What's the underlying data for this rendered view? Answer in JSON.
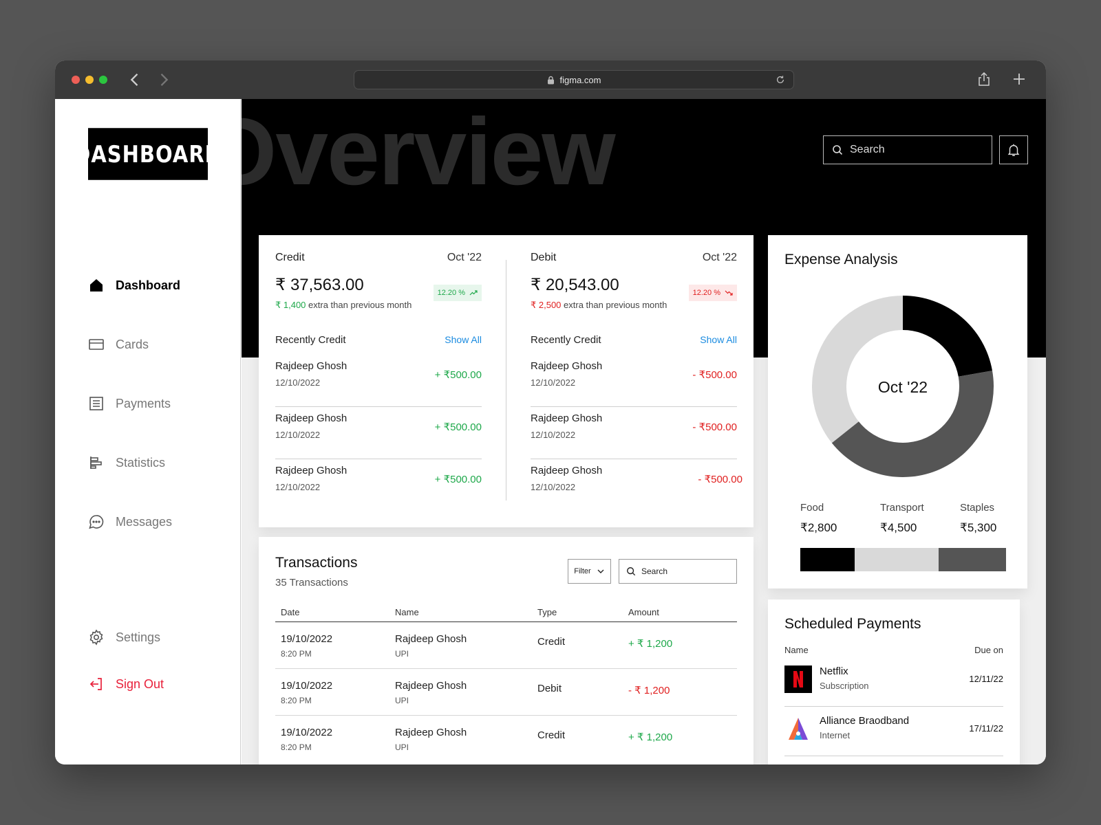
{
  "browser": {
    "url": "figma.com"
  },
  "sidebar": {
    "logo": "DASHBOARD",
    "items": [
      {
        "label": "Dashboard",
        "icon": "home-icon"
      },
      {
        "label": "Cards",
        "icon": "card-icon"
      },
      {
        "label": "Payments",
        "icon": "receipt-icon"
      },
      {
        "label": "Statistics",
        "icon": "statistics-icon"
      },
      {
        "label": "Messages",
        "icon": "message-icon"
      }
    ],
    "settings_label": "Settings",
    "signout_label": "Sign Out"
  },
  "header": {
    "title": "Overview",
    "search_placeholder": "Search"
  },
  "credit": {
    "label": "Credit",
    "month": "Oct '22",
    "amount": "₹ 37,563.00",
    "badge": "12.20 %",
    "note_value": "₹ 1,400",
    "note_text": " extra than previous month",
    "recent_label": "Recently Credit",
    "show_all": "Show All",
    "rows": [
      {
        "name": "Rajdeep Ghosh",
        "date": "12/10/2022",
        "amount": "+ ₹500.00"
      },
      {
        "name": "Rajdeep Ghosh",
        "date": "12/10/2022",
        "amount": "+ ₹500.00"
      },
      {
        "name": "Rajdeep Ghosh",
        "date": "12/10/2022",
        "amount": "+ ₹500.00"
      }
    ]
  },
  "debit": {
    "label": "Debit",
    "month": "Oct '22",
    "amount": "₹ 20,543.00",
    "badge": "12.20 %",
    "note_value": "₹ 2,500",
    "note_text": " extra than previous month",
    "recent_label": "Recently Credit",
    "show_all": "Show All",
    "rows": [
      {
        "name": "Rajdeep Ghosh",
        "date": "12/10/2022",
        "amount": "- ₹500.00"
      },
      {
        "name": "Rajdeep Ghosh",
        "date": "12/10/2022",
        "amount": "- ₹500.00"
      },
      {
        "name": "Rajdeep Ghosh",
        "date": "12/10/2022",
        "amount": "- ₹500.00"
      }
    ]
  },
  "transactions": {
    "title": "Transactions",
    "count": "35 Transactions",
    "filter_label": "Filter",
    "search_placeholder": "Search",
    "columns": [
      "Date",
      "Name",
      "Type",
      "Amount"
    ],
    "rows": [
      {
        "date": "19/10/2022",
        "time": "8:20 PM",
        "name": "Rajdeep Ghosh",
        "method": "UPI",
        "type": "Credit",
        "amount": "+ ₹ 1,200",
        "sign": "pos"
      },
      {
        "date": "19/10/2022",
        "time": "8:20 PM",
        "name": "Rajdeep Ghosh",
        "method": "UPI",
        "type": "Debit",
        "amount": "- ₹ 1,200",
        "sign": "neg"
      },
      {
        "date": "19/10/2022",
        "time": "8:20 PM",
        "name": "Rajdeep Ghosh",
        "method": "UPI",
        "type": "Credit",
        "amount": "+ ₹ 1,200",
        "sign": "pos"
      }
    ]
  },
  "expense": {
    "title": "Expense Analysis",
    "center_label": "Oct '22",
    "categories": [
      {
        "name": "Food",
        "value": "₹2,800",
        "amount": 2800,
        "color": "#000000"
      },
      {
        "name": "Transport",
        "value": "₹4,500",
        "amount": 4500,
        "color": "#d9d9d9"
      },
      {
        "name": "Staples",
        "value": "₹5,300",
        "amount": 5300,
        "color": "#555555"
      }
    ]
  },
  "scheduled": {
    "title": "Scheduled Payments",
    "col_name": "Name",
    "col_due": "Due on",
    "rows": [
      {
        "name": "Netflix",
        "category": "Subscription",
        "due": "12/11/22",
        "icon": "netflix-logo-icon"
      },
      {
        "name": "Alliance Braodband",
        "category": "Internet",
        "due": "17/11/22",
        "icon": "alliance-logo-icon"
      }
    ]
  },
  "colors": {
    "positive": "#1ea84a",
    "negative": "#e02020",
    "link": "#1a8be0",
    "signout": "#e8203a"
  }
}
